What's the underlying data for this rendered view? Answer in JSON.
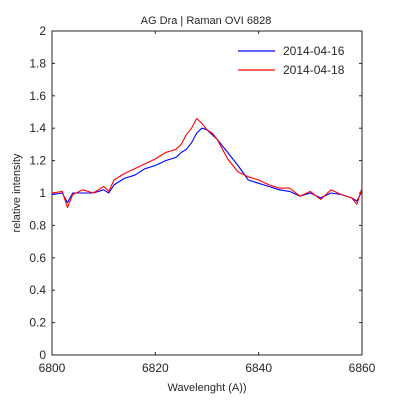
{
  "chart_data": {
    "type": "line",
    "title": "AG Dra | Raman  OVI 6828",
    "xlabel": "Wavelenght (A))",
    "ylabel": "relative intensity",
    "xlim": [
      6800,
      6860
    ],
    "ylim": [
      0,
      2
    ],
    "xticks": [
      6800,
      6820,
      6840,
      6860
    ],
    "yticks": [
      0,
      0.2,
      0.4,
      0.6,
      0.8,
      1,
      1.2,
      1.4,
      1.6,
      1.8,
      2
    ],
    "xtick_labels": [
      "6800",
      "6820",
      "6840",
      "6860"
    ],
    "ytick_labels": [
      "0",
      "0.2",
      "0.4",
      "0.6",
      "0.8",
      "1",
      "1.2",
      "1.4",
      "1.6",
      "1.8",
      "2"
    ],
    "grid": false,
    "legend_position": "top-right",
    "series": [
      {
        "name": "2014-04-16",
        "color": "#0000ff",
        "x": [
          6800,
          6802,
          6803,
          6804,
          6806,
          6808,
          6810,
          6811,
          6812,
          6814,
          6816,
          6818,
          6820,
          6822,
          6824,
          6825,
          6826,
          6827,
          6828,
          6829,
          6830,
          6831,
          6832,
          6833,
          6834,
          6836,
          6838,
          6840,
          6842,
          6844,
          6846,
          6848,
          6850,
          6852,
          6854,
          6856,
          6858,
          6859,
          6860
        ],
        "y": [
          0.99,
          1.0,
          0.94,
          1.0,
          1.0,
          1.0,
          1.02,
          1.0,
          1.05,
          1.09,
          1.11,
          1.15,
          1.17,
          1.2,
          1.22,
          1.25,
          1.27,
          1.31,
          1.37,
          1.4,
          1.39,
          1.36,
          1.33,
          1.29,
          1.25,
          1.17,
          1.08,
          1.06,
          1.04,
          1.02,
          1.01,
          0.98,
          1.0,
          0.97,
          1.0,
          0.99,
          0.97,
          0.95,
          1.01
        ]
      },
      {
        "name": "2014-04-18",
        "color": "#ff0000",
        "x": [
          6800,
          6802,
          6803,
          6804,
          6806,
          6808,
          6810,
          6811,
          6812,
          6814,
          6816,
          6818,
          6820,
          6822,
          6824,
          6825,
          6826,
          6827,
          6828,
          6829,
          6830,
          6831,
          6832,
          6833,
          6834,
          6836,
          6838,
          6840,
          6842,
          6844,
          6846,
          6848,
          6850,
          6852,
          6854,
          6856,
          6858,
          6859,
          6860
        ],
        "y": [
          1.0,
          1.01,
          0.91,
          0.99,
          1.02,
          1.0,
          1.04,
          1.01,
          1.08,
          1.12,
          1.15,
          1.18,
          1.21,
          1.25,
          1.27,
          1.3,
          1.36,
          1.4,
          1.46,
          1.43,
          1.39,
          1.37,
          1.33,
          1.27,
          1.21,
          1.13,
          1.1,
          1.08,
          1.05,
          1.03,
          1.03,
          0.98,
          1.01,
          0.96,
          1.02,
          0.99,
          0.97,
          0.93,
          1.03
        ]
      }
    ]
  }
}
